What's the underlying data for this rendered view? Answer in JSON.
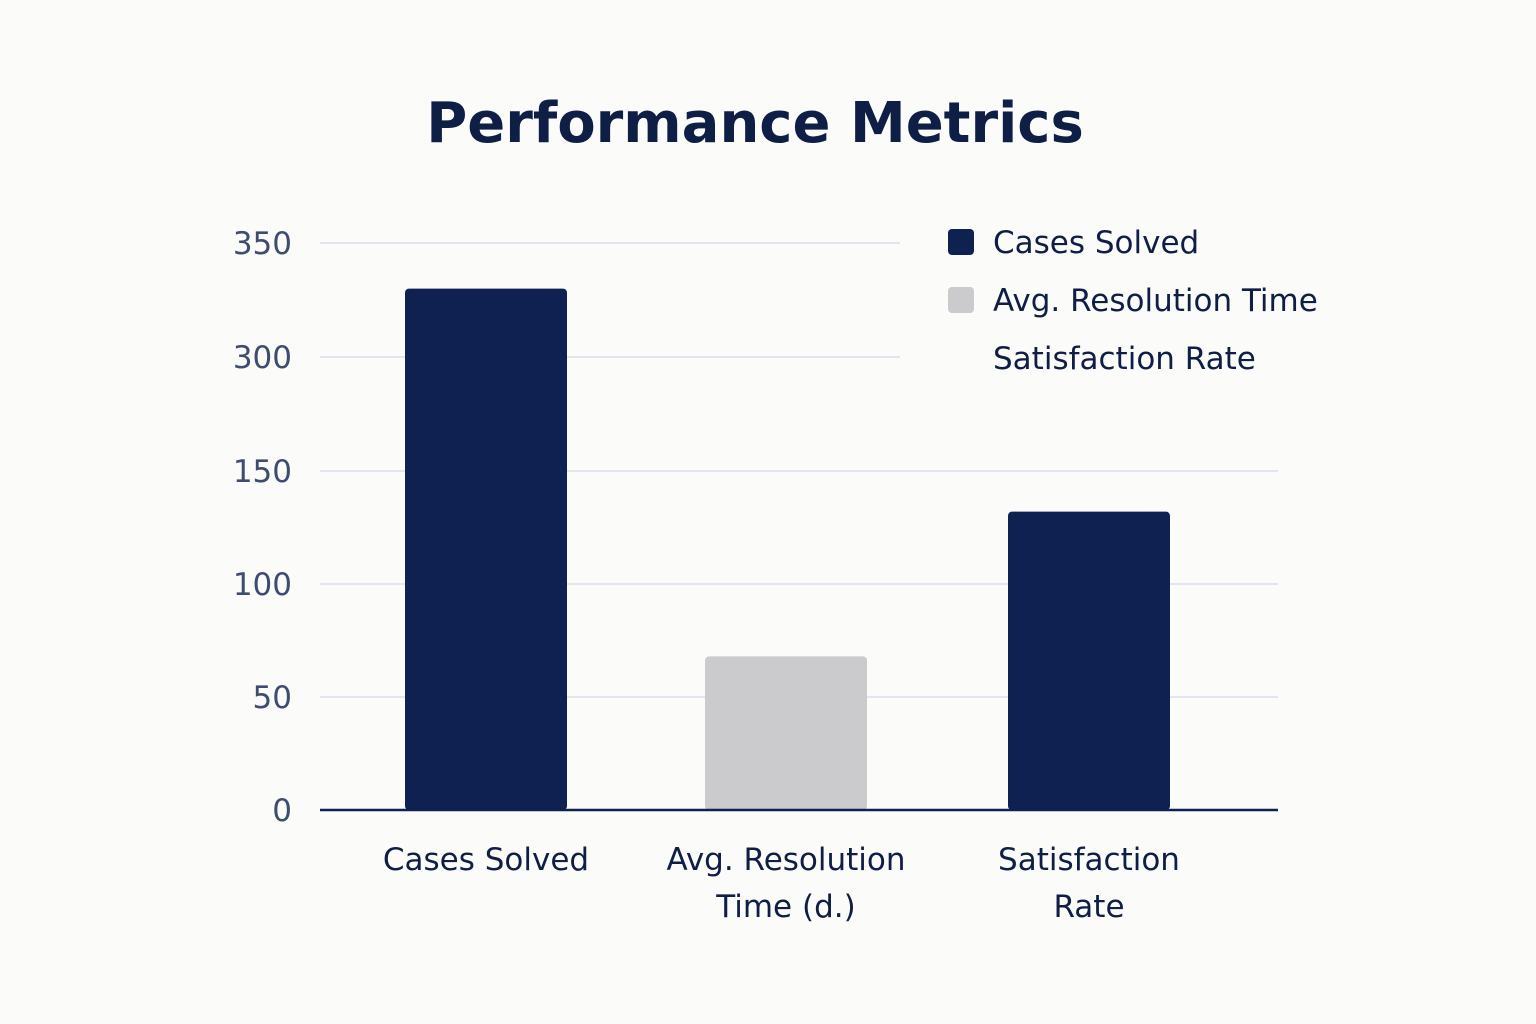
{
  "colors": {
    "background": "#fbfbfa",
    "navy": "#0f2150",
    "gray": "#cbcbcd",
    "grid": "#e3e6ee",
    "axis": "#0f2150",
    "tick_text": "#3e4d6e",
    "label_text": "#0f1e45",
    "title_text": "#0f1e45"
  },
  "chart_data": {
    "type": "bar",
    "title": "Performance Metrics",
    "xlabel": "",
    "ylabel": "",
    "categories": [
      [
        "Cases Solved"
      ],
      [
        "Avg. Resolution",
        "Time (d.)"
      ],
      [
        "Satisfaction",
        "Rate"
      ]
    ],
    "values": [
      330,
      68,
      132
    ],
    "bar_colors": [
      "navy",
      "gray",
      "navy"
    ],
    "y_ticks": [
      0,
      50,
      100,
      150,
      300,
      350
    ],
    "grid": true,
    "legend_position": "top-right",
    "legend": [
      {
        "label": "Cases Solved",
        "color": "navy",
        "show_swatch": true
      },
      {
        "label": "Avg. Resolution Time",
        "color": "gray",
        "show_swatch": true
      },
      {
        "label": "Satisfaction Rate",
        "color": "navy",
        "show_swatch": false
      }
    ]
  }
}
